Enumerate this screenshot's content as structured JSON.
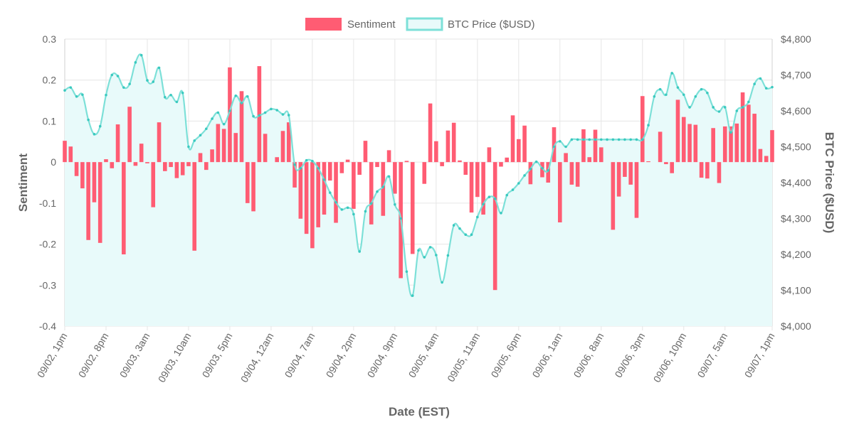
{
  "chart_data": {
    "type": "bar+line",
    "legend": {
      "position": "top",
      "entries": [
        {
          "label": "Sentiment",
          "color": "#ff5c73"
        },
        {
          "label": "BTC Price ($USD)",
          "color": "#7de0d8"
        }
      ]
    },
    "xlabel": "Date (EST)",
    "ylabel_left": "Sentiment",
    "ylabel_right": "BTC Price ($USD)",
    "y_left": {
      "min": -0.4,
      "max": 0.3,
      "ticks": [
        "0.3",
        "0.2",
        "0.1",
        "0",
        "-0.1",
        "-0.2",
        "-0.3",
        "-0.4"
      ]
    },
    "y_right": {
      "min": 4000,
      "max": 4800,
      "ticks": [
        "$4,800",
        "$4,700",
        "$4,600",
        "$4,500",
        "$4,400",
        "$4,300",
        "$4,200",
        "$4,100",
        "$4,000"
      ]
    },
    "x_tick_labels": [
      "09/02, 1pm",
      "09/02, 8pm",
      "09/03, 3am",
      "09/03, 10am",
      "09/03, 5pm",
      "09/04, 12am",
      "09/04, 7am",
      "09/04, 2pm",
      "09/04, 9pm",
      "09/05, 4am",
      "09/05, 11am",
      "09/05, 6pm",
      "09/06, 1am",
      "09/06, 8am",
      "09/06, 3pm",
      "09/06, 10pm",
      "09/07, 5am",
      "09/07, 1pm"
    ],
    "grid": true,
    "n_points": 121,
    "colors": {
      "bar": "#ff5c73",
      "line": "#7de0d8",
      "fill": "#e8fafa",
      "grid": "#e6e6e6",
      "point": "#3ac9bf"
    },
    "series": [
      {
        "name": "Sentiment",
        "type": "bar",
        "axis": "left",
        "values": [
          0.052,
          0.038,
          -0.034,
          -0.064,
          -0.19,
          -0.098,
          -0.197,
          0.007,
          -0.015,
          0.092,
          -0.225,
          0.135,
          -0.009,
          0.045,
          -0.003,
          -0.11,
          0.097,
          -0.022,
          -0.012,
          -0.039,
          -0.032,
          -0.01,
          -0.216,
          0.022,
          -0.019,
          0.031,
          0.093,
          0.081,
          0.231,
          0.071,
          0.173,
          -0.1,
          -0.12,
          0.234,
          0.069,
          0.0,
          0.012,
          0.076,
          0.097,
          -0.062,
          -0.138,
          -0.175,
          -0.21,
          -0.159,
          -0.128,
          -0.045,
          -0.148,
          -0.027,
          0.006,
          -0.114,
          -0.031,
          0.052,
          -0.152,
          -0.012,
          -0.131,
          0.029,
          -0.077,
          -0.283,
          0.003,
          -0.224,
          0.0,
          -0.053,
          0.143,
          0.051,
          -0.01,
          0.077,
          0.096,
          0.004,
          -0.031,
          -0.123,
          -0.085,
          -0.128,
          0.036,
          -0.312,
          -0.011,
          0.011,
          0.114,
          0.056,
          0.089,
          -0.054,
          0.0,
          -0.037,
          -0.05,
          0.085,
          -0.147,
          0.022,
          -0.055,
          -0.06,
          0.08,
          0.012,
          0.079,
          0.036,
          0.0,
          -0.165,
          -0.084,
          -0.036,
          -0.055,
          -0.136,
          0.161,
          0.002,
          0.0,
          0.074,
          -0.005,
          -0.027,
          0.152,
          0.11,
          0.093,
          0.091,
          -0.038,
          -0.04,
          0.083,
          -0.051,
          0.087,
          0.087,
          0.094,
          0.17,
          0.14,
          0.118,
          0.032,
          0.015,
          0.078
        ]
      },
      {
        "name": "BTC Price ($USD)",
        "type": "line",
        "axis": "right",
        "values": [
          4657,
          4665,
          4640,
          4645,
          4575,
          4535,
          4557,
          4644,
          4700,
          4697,
          4665,
          4675,
          4735,
          4755,
          4685,
          4681,
          4720,
          4638,
          4644,
          4625,
          4650,
          4500,
          4517,
          4532,
          4550,
          4578,
          4595,
          4563,
          4600,
          4642,
          4622,
          4640,
          4585,
          4587,
          4595,
          4605,
          4602,
          4590,
          4588,
          4450,
          4440,
          4462,
          4460,
          4440,
          4408,
          4372,
          4345,
          4325,
          4330,
          4312,
          4208,
          4320,
          4342,
          4375,
          4388,
          4417,
          4339,
          4300,
          4152,
          4085,
          4211,
          4192,
          4220,
          4198,
          4122,
          4197,
          4281,
          4272,
          4255,
          4255,
          4304,
          4340,
          4360,
          4355,
          4315,
          4365,
          4380,
          4398,
          4420,
          4438,
          4458,
          4440,
          4434,
          4500,
          4515,
          4500,
          4520,
          4520,
          4520,
          4520,
          4520,
          4520,
          4520,
          4520,
          4520,
          4520,
          4520,
          4520,
          4520,
          4560,
          4640,
          4660,
          4645,
          4705,
          4665,
          4645,
          4610,
          4640,
          4660,
          4650,
          4610,
          4598,
          4610,
          4540,
          4600,
          4610,
          4625,
          4675,
          4690,
          4663,
          4666
        ]
      }
    ]
  }
}
